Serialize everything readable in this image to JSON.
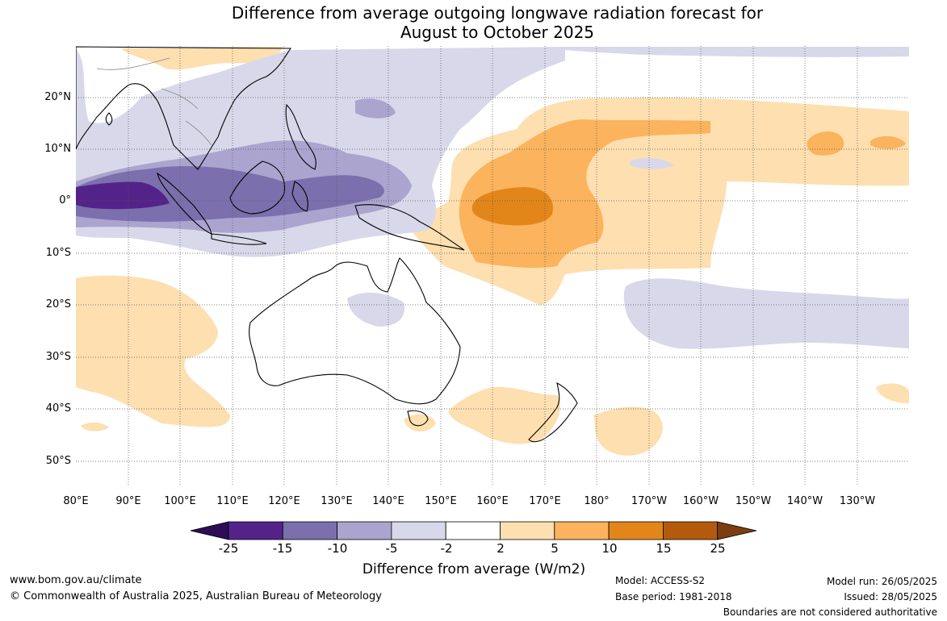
{
  "title_line1": "Difference from average outgoing longwave radiation forecast for",
  "title_line2": "August to October 2025",
  "lat_labels": [
    "20°N",
    "10°N",
    "0°",
    "10°S",
    "20°S",
    "30°S",
    "40°S",
    "50°S"
  ],
  "lon_labels": [
    "80°E",
    "90°E",
    "100°E",
    "110°E",
    "120°E",
    "130°E",
    "140°E",
    "150°E",
    "160°E",
    "170°E",
    "180°",
    "170°W",
    "160°W",
    "150°W",
    "140°W",
    "130°W"
  ],
  "legend": {
    "title": "Difference from average (W/m2)",
    "ticks": [
      "-25",
      "-15",
      "-10",
      "-5",
      "-2",
      "2",
      "5",
      "10",
      "15",
      "25"
    ],
    "colors": [
      "#2d0d55",
      "#54238a",
      "#7b70ad",
      "#aba4cf",
      "#d8d8ea",
      "#ffffff",
      "#fddfb0",
      "#fbb35d",
      "#e3861a",
      "#b45a0c",
      "#7c3e10"
    ]
  },
  "footer": {
    "website": "www.bom.gov.au/climate",
    "copyright": "© Commonwealth of Australia 2025, Australian Bureau of Meteorology",
    "model": "Model: ACCESS-S2",
    "base_period": "Base period: 1981-2018",
    "model_run": "Model run: 26/05/2025",
    "issued": "Issued: 28/05/2025",
    "boundaries": "Boundaries are not considered authoritative"
  }
}
